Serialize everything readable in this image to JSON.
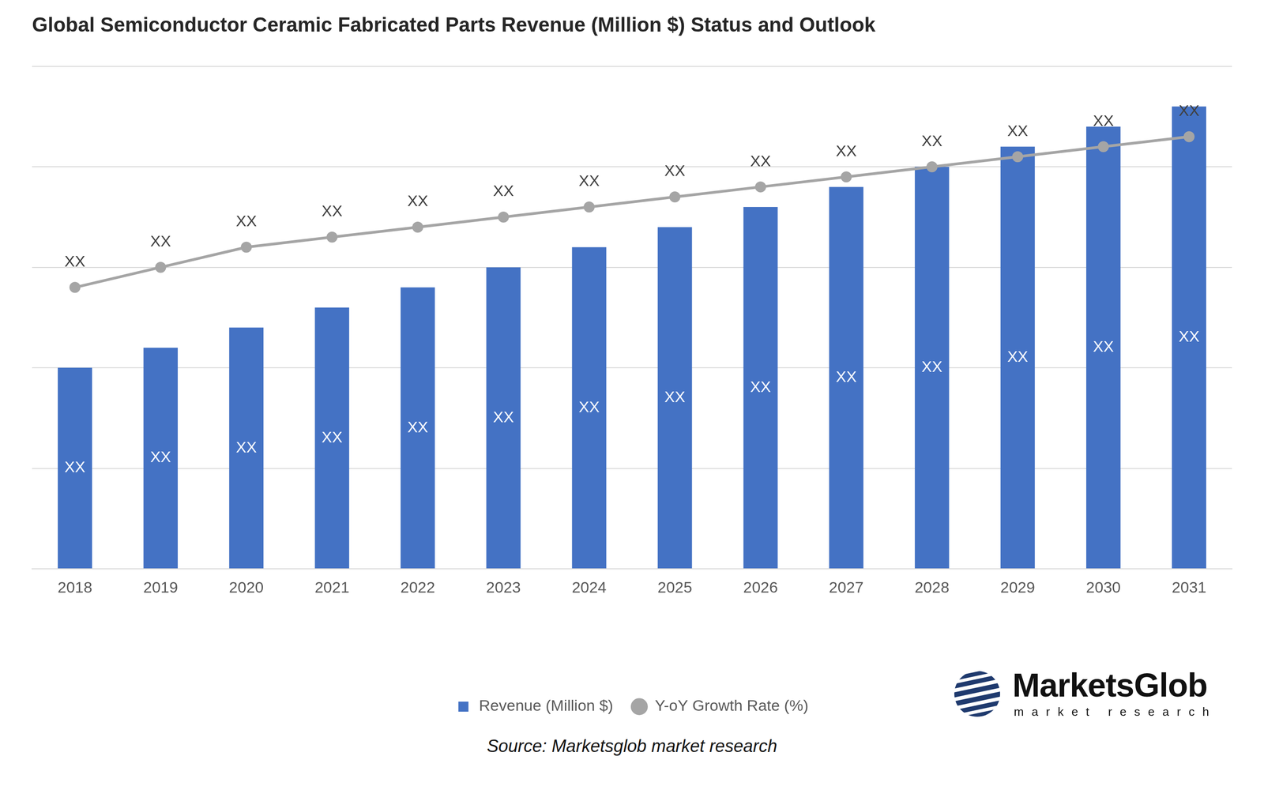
{
  "chart_data": {
    "type": "bar",
    "title": "Global Semiconductor Ceramic Fabricated Parts Revenue (Million $) Status and Outlook",
    "categories": [
      "2018",
      "2019",
      "2020",
      "2021",
      "2022",
      "2023",
      "2024",
      "2025",
      "2026",
      "2027",
      "2028",
      "2029",
      "2030",
      "2031"
    ],
    "series": [
      {
        "name": "Revenue (Million $)",
        "type": "bar",
        "color": "#4472c4",
        "values": [
          40,
          44,
          48,
          52,
          56,
          60,
          64,
          68,
          72,
          76,
          80,
          84,
          88,
          92
        ],
        "value_labels": [
          "XX",
          "XX",
          "XX",
          "XX",
          "XX",
          "XX",
          "XX",
          "XX",
          "XX",
          "XX",
          "XX",
          "XX",
          "XX",
          "XX"
        ]
      },
      {
        "name": "Y-oY Growth Rate (%)",
        "type": "line",
        "color": "#a5a5a5",
        "marker": "circle",
        "values": [
          56,
          60,
          64,
          66,
          68,
          70,
          72,
          74,
          76,
          78,
          80,
          82,
          84,
          86
        ],
        "value_labels": [
          "XX",
          "XX",
          "XX",
          "XX",
          "XX",
          "XX",
          "XX",
          "XX",
          "XX",
          "XX",
          "XX",
          "XX",
          "XX",
          "XX"
        ]
      }
    ],
    "ylim": [
      0,
      100
    ],
    "yticks": [
      0,
      20,
      40,
      60,
      80,
      100
    ],
    "grid": true,
    "tick_labels": "x",
    "legend": "bottom",
    "annotations": {
      "source": "Source: Marketsglob market research",
      "brand": "MarketsGlob",
      "brand_tagline": "market research"
    }
  }
}
